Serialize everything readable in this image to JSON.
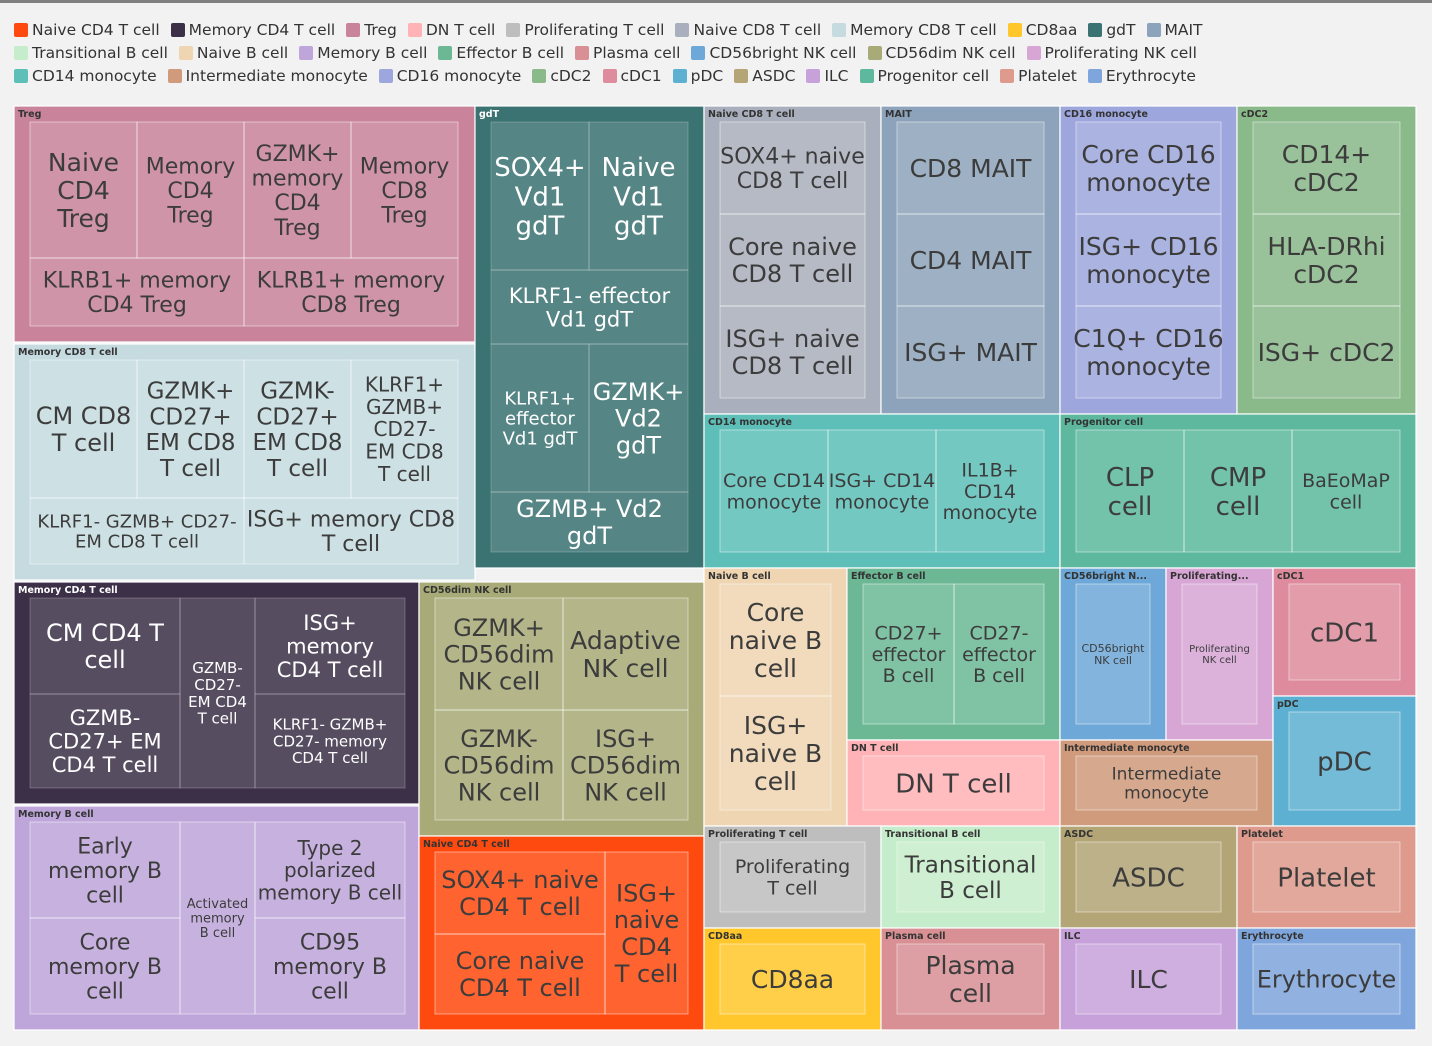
{
  "chart_data": {
    "type": "treemap",
    "categories": [
      {
        "name": "Treg",
        "color": "#C9839B",
        "children": [
          [
            "Naive CD4 Treg",
            1
          ],
          [
            "Memory CD4 Treg",
            1
          ],
          [
            "GZMK+ memory CD4 Treg",
            1
          ],
          [
            "Memory CD8 Treg",
            1
          ],
          [
            "KLRB1+ memory CD4 Treg",
            1
          ],
          [
            "KLRB1+ memory CD8 Treg",
            1
          ]
        ]
      },
      {
        "name": "Memory CD8 T cell",
        "color": "#C5DBE0",
        "children": [
          [
            "CM CD8 T cell",
            1
          ],
          [
            "GZMK+ CD27+ EM CD8 T cell",
            1
          ],
          [
            "GZMK- CD27+ EM CD8 T cell",
            1
          ],
          [
            "KLRF1+ GZMB+ CD27- EM CD8 T cell",
            1
          ],
          [
            "KLRF1- GZMB+ CD27- EM CD8 T cell",
            1
          ],
          [
            "ISG+ memory CD8 T cell",
            1
          ]
        ]
      },
      {
        "name": "gdT",
        "color": "#3B7272",
        "children": [
          [
            "SOX4+ Vd1 gdT",
            1
          ],
          [
            "Naive Vd1 gdT",
            1
          ],
          [
            "KLRF1- effector Vd1 gdT",
            1
          ],
          [
            "KLRF1+ effector Vd1 gdT",
            1
          ],
          [
            "GZMK+ Vd2 gdT",
            1
          ],
          [
            "GZMB+ Vd2 gdT",
            1
          ]
        ]
      },
      {
        "name": "Memory CD4 T cell",
        "color": "#3C3048",
        "children": [
          [
            "CM CD4 T cell",
            1
          ],
          [
            "GZMB- CD27+ EM CD4 T cell",
            1
          ],
          [
            "GZMB- CD27- EM CD4 T cell",
            1
          ],
          [
            "ISG+ memory CD4 T cell",
            1
          ],
          [
            "KLRF1- GZMB+ CD27- memory CD4 T cell",
            1
          ]
        ]
      },
      {
        "name": "Memory B cell",
        "color": "#BEA6DA",
        "children": [
          [
            "Early memory B cell",
            1
          ],
          [
            "Core memory B cell",
            1
          ],
          [
            "Activated memory B cell",
            1
          ],
          [
            "Type 2 polarized memory B cell",
            1
          ],
          [
            "CD95 memory B cell",
            1
          ]
        ]
      },
      {
        "name": "CD56dim NK cell",
        "color": "#A8AB77",
        "children": [
          [
            "GZMK+ CD56dim NK cell",
            1
          ],
          [
            "Adaptive NK cell",
            1
          ],
          [
            "GZMK- CD56dim NK cell",
            1
          ],
          [
            "ISG+ CD56dim NK cell",
            1
          ]
        ]
      },
      {
        "name": "Naive CD4 T cell",
        "color": "#FF4A0F",
        "children": [
          [
            "SOX4+ naive CD4 T cell",
            1
          ],
          [
            "Core naive CD4 T cell",
            1
          ],
          [
            "ISG+ naive CD4 T cell",
            1
          ]
        ]
      },
      {
        "name": "Naive CD8 T cell",
        "color": "#A9AFBC",
        "children": [
          [
            "SOX4+ naive CD8 T cell",
            1
          ],
          [
            "Core naive CD8 T cell",
            1
          ],
          [
            "ISG+ naive CD8 T cell",
            1
          ]
        ]
      },
      {
        "name": "MAIT",
        "color": "#8DA3BB",
        "children": [
          [
            "CD8 MAIT",
            1
          ],
          [
            "CD4 MAIT",
            1
          ],
          [
            "ISG+ MAIT",
            1
          ]
        ]
      },
      {
        "name": "CD16 monocyte",
        "color": "#9EA7DD",
        "children": [
          [
            "Core CD16 monocyte",
            1
          ],
          [
            "ISG+ CD16 monocyte",
            1
          ],
          [
            "C1Q+ CD16 monocyte",
            1
          ]
        ]
      },
      {
        "name": "cDC2",
        "color": "#8AB98A",
        "children": [
          [
            "CD14+ cDC2",
            1
          ],
          [
            "HLA-DRhi cDC2",
            1
          ],
          [
            "ISG+ cDC2",
            1
          ]
        ]
      },
      {
        "name": "CD14 monocyte",
        "color": "#5EBFB8",
        "children": [
          [
            "Core CD14 monocyte",
            1
          ],
          [
            "ISG+ CD14 monocyte",
            1
          ],
          [
            "IL1B+ CD14 monocyte",
            1
          ]
        ]
      },
      {
        "name": "Progenitor cell",
        "color": "#5DB89D",
        "children": [
          [
            "CLP cell",
            1
          ],
          [
            "CMP cell",
            1
          ],
          [
            "BaEoMaP cell",
            1
          ]
        ]
      },
      {
        "name": "Naive B cell",
        "color": "#EFD5B2",
        "children": [
          [
            "Core naive B cell",
            1
          ],
          [
            "ISG+ naive B cell",
            1
          ]
        ]
      },
      {
        "name": "Effector B cell",
        "color": "#6CB895",
        "children": [
          [
            "CD27+ effector B cell",
            1
          ],
          [
            "CD27- effector B cell",
            1
          ]
        ]
      },
      {
        "name": "CD56bright NK cell",
        "color": "#6EA8D8",
        "children": [
          [
            "CD56bright NK cell",
            1
          ]
        ]
      },
      {
        "name": "Proliferating NK cell",
        "color": "#D7A6D5",
        "children": [
          [
            "Proliferating NK cell",
            1
          ]
        ]
      },
      {
        "name": "cDC1",
        "color": "#DE8C9D",
        "children": [
          [
            "cDC1",
            1
          ]
        ]
      },
      {
        "name": "pDC",
        "color": "#5EB0D2",
        "children": [
          [
            "pDC",
            1
          ]
        ]
      },
      {
        "name": "DN T cell",
        "color": "#FFB3B6",
        "children": [
          [
            "DN T cell",
            1
          ]
        ]
      },
      {
        "name": "Intermediate monocyte",
        "color": "#D09B7C",
        "children": [
          [
            "Intermediate monocyte",
            1
          ]
        ]
      },
      {
        "name": "Proliferating T cell",
        "color": "#BEBEBE",
        "children": [
          [
            "Proliferating T cell",
            1
          ]
        ]
      },
      {
        "name": "Transitional B cell",
        "color": "#C6EDCB",
        "children": [
          [
            "Transitional B cell",
            1
          ]
        ]
      },
      {
        "name": "ASDC",
        "color": "#B3A576",
        "children": [
          [
            "ASDC",
            1
          ]
        ]
      },
      {
        "name": "Platelet",
        "color": "#DE9A8C",
        "children": [
          [
            "Platelet",
            1
          ]
        ]
      },
      {
        "name": "CD8aa",
        "color": "#FFC72C",
        "children": [
          [
            "CD8aa",
            1
          ]
        ]
      },
      {
        "name": "Plasma cell",
        "color": "#D89094",
        "children": [
          [
            "Plasma cell",
            1
          ]
        ]
      },
      {
        "name": "ILC",
        "color": "#C7A2DA",
        "children": [
          [
            "ILC",
            1
          ]
        ]
      },
      {
        "name": "Erythrocyte",
        "color": "#7FA6DC",
        "children": [
          [
            "Erythrocyte",
            1
          ]
        ]
      }
    ],
    "legend": [
      [
        "Naive CD4 T cell",
        "Memory CD4 T cell",
        "Treg",
        "DN T cell",
        "Proliferating T cell",
        "Naive CD8 T cell",
        "Memory CD8 T cell",
        "CD8aa",
        "gdT",
        "MAIT"
      ],
      [
        "Transitional B cell",
        "Naive B cell",
        "Memory B cell",
        "Effector B cell",
        "Plasma cell",
        "CD56bright NK cell",
        "CD56dim NK cell",
        "Proliferating NK cell"
      ],
      [
        "CD14 monocyte",
        "Intermediate monocyte",
        "CD16 monocyte",
        "cDC2",
        "cDC1",
        "pDC",
        "ASDC",
        "ILC",
        "Progenitor cell",
        "Platelet",
        "Erythrocyte"
      ]
    ],
    "legend_placement": "top"
  }
}
